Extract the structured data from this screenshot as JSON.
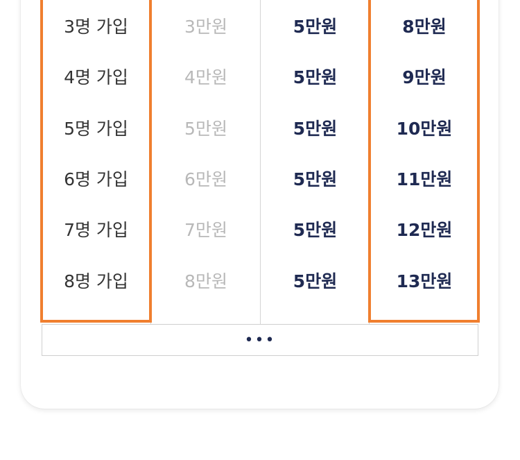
{
  "table": {
    "people": [
      "3명 가입",
      "4명 가입",
      "5명 가입",
      "6명 가입",
      "7명 가입",
      "8명 가입"
    ],
    "basic": [
      "3만원",
      "4만원",
      "5만원",
      "6만원",
      "7만원",
      "8만원"
    ],
    "bonus": [
      "5만원",
      "5만원",
      "5만원",
      "5만원",
      "5만원",
      "5만원"
    ],
    "total": [
      "8만원",
      "9만원",
      "10만원",
      "11만원",
      "12만원",
      "13만원"
    ]
  },
  "more": {
    "label": "•••"
  },
  "colors": {
    "accent": "#f07f2f",
    "navy": "#1f2a52",
    "muted": "#b8b8b8"
  }
}
